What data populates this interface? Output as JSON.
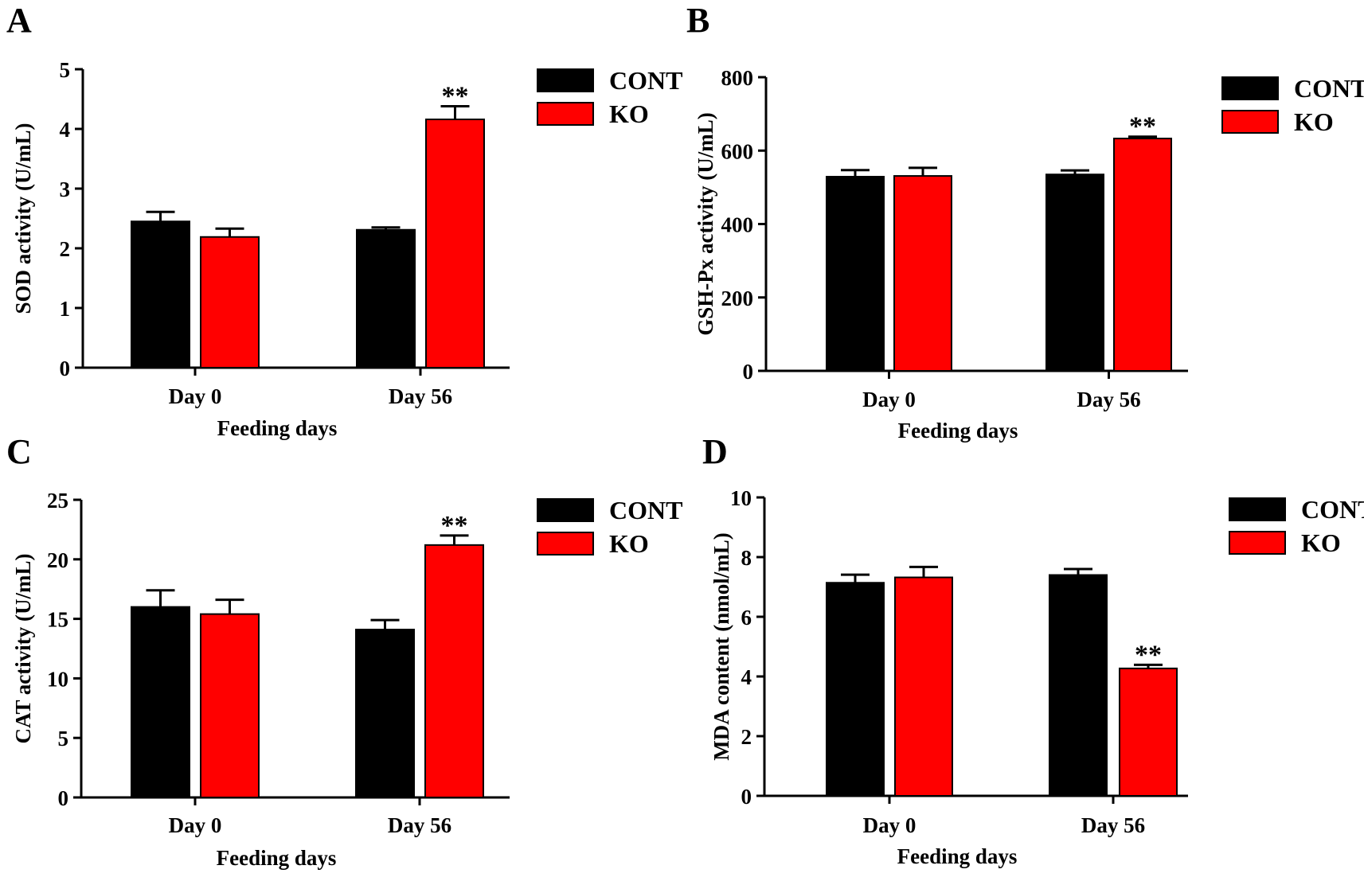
{
  "legend": {
    "series": [
      {
        "name": "CONT",
        "color": "#000000"
      },
      {
        "name": "KO",
        "color": "#ff0000"
      }
    ]
  },
  "chart_data": [
    {
      "panel": "A",
      "type": "bar",
      "title": "",
      "xlabel": "Feeding days",
      "ylabel": "SOD activity (U/mL)",
      "categories": [
        "Day 0",
        "Day 56"
      ],
      "ylim": [
        0,
        5
      ],
      "yticks": [
        0,
        1,
        2,
        3,
        4,
        5
      ],
      "legend_position": "top-right",
      "series": [
        {
          "name": "CONT",
          "color": "#000000",
          "values": [
            2.45,
            2.31
          ],
          "errors": [
            0.16,
            0.04
          ]
        },
        {
          "name": "KO",
          "color": "#ff0000",
          "values": [
            2.19,
            4.16
          ],
          "errors": [
            0.14,
            0.22
          ]
        }
      ],
      "annotations": [
        {
          "series": "KO",
          "category": "Day 56",
          "text": "**"
        }
      ]
    },
    {
      "panel": "B",
      "type": "bar",
      "title": "",
      "xlabel": "Feeding days",
      "ylabel": "GSH-Px activity (U/mL)",
      "categories": [
        "Day 0",
        "Day 56"
      ],
      "ylim": [
        0,
        800
      ],
      "yticks": [
        0,
        200,
        400,
        600,
        800
      ],
      "legend_position": "top-right",
      "series": [
        {
          "name": "CONT",
          "color": "#000000",
          "values": [
            529,
            535
          ],
          "errors": [
            18,
            11
          ]
        },
        {
          "name": "KO",
          "color": "#ff0000",
          "values": [
            531,
            633
          ],
          "errors": [
            22,
            5
          ]
        }
      ],
      "annotations": [
        {
          "series": "KO",
          "category": "Day 56",
          "text": "**"
        }
      ]
    },
    {
      "panel": "C",
      "type": "bar",
      "title": "",
      "xlabel": "Feeding days",
      "ylabel": "CAT activity (U/mL)",
      "categories": [
        "Day 0",
        "Day 56"
      ],
      "ylim": [
        0,
        25
      ],
      "yticks": [
        0,
        5,
        10,
        15,
        20,
        25
      ],
      "legend_position": "top-right",
      "series": [
        {
          "name": "CONT",
          "color": "#000000",
          "values": [
            16.0,
            14.1
          ],
          "errors": [
            1.4,
            0.8
          ]
        },
        {
          "name": "KO",
          "color": "#ff0000",
          "values": [
            15.4,
            21.2
          ],
          "errors": [
            1.2,
            0.8
          ]
        }
      ],
      "annotations": [
        {
          "series": "KO",
          "category": "Day 56",
          "text": "**"
        }
      ]
    },
    {
      "panel": "D",
      "type": "bar",
      "title": "",
      "xlabel": "Feeding days",
      "ylabel": "MDA content (nmol/mL)",
      "categories": [
        "Day 0",
        "Day 56"
      ],
      "ylim": [
        0,
        10
      ],
      "yticks": [
        0,
        2,
        4,
        6,
        8,
        10
      ],
      "legend_position": "top-right",
      "series": [
        {
          "name": "CONT",
          "color": "#000000",
          "values": [
            7.14,
            7.4
          ],
          "errors": [
            0.27,
            0.2
          ]
        },
        {
          "name": "KO",
          "color": "#ff0000",
          "values": [
            7.32,
            4.27
          ],
          "errors": [
            0.35,
            0.12
          ]
        }
      ],
      "annotations": [
        {
          "series": "KO",
          "category": "Day 56",
          "text": "**"
        }
      ]
    }
  ]
}
